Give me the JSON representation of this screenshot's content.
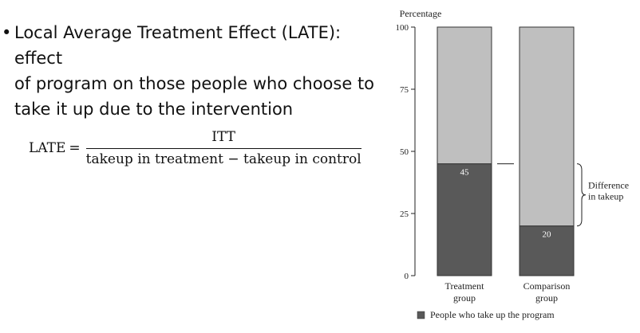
{
  "bullet": {
    "text": "Local Average Treatment Effect (LATE): effect\nof program on those people who choose to\ntake it up due to the intervention"
  },
  "formula": {
    "lhs": "LATE",
    "equals": "=",
    "numerator": "ITT",
    "denominator": "takeup in treatment − takeup in control"
  },
  "chart_data": {
    "type": "bar",
    "stacked": true,
    "ylabel": "Percentage",
    "ylim": [
      0,
      100
    ],
    "yticks": [
      0,
      25,
      50,
      75,
      100
    ],
    "categories": [
      "Treatment\ngroup",
      "Comparison\ngroup"
    ],
    "series": [
      {
        "name": "People who take up the program",
        "values": [
          45,
          20
        ],
        "data_labels": [
          "45",
          "20"
        ],
        "color": "#595959"
      },
      {
        "values": [
          55,
          80
        ],
        "color": "#bfbfbf"
      }
    ],
    "annotation": {
      "text": "Difference\nin takeup",
      "from": 20,
      "to": 45
    },
    "legend_position": "bottom"
  }
}
